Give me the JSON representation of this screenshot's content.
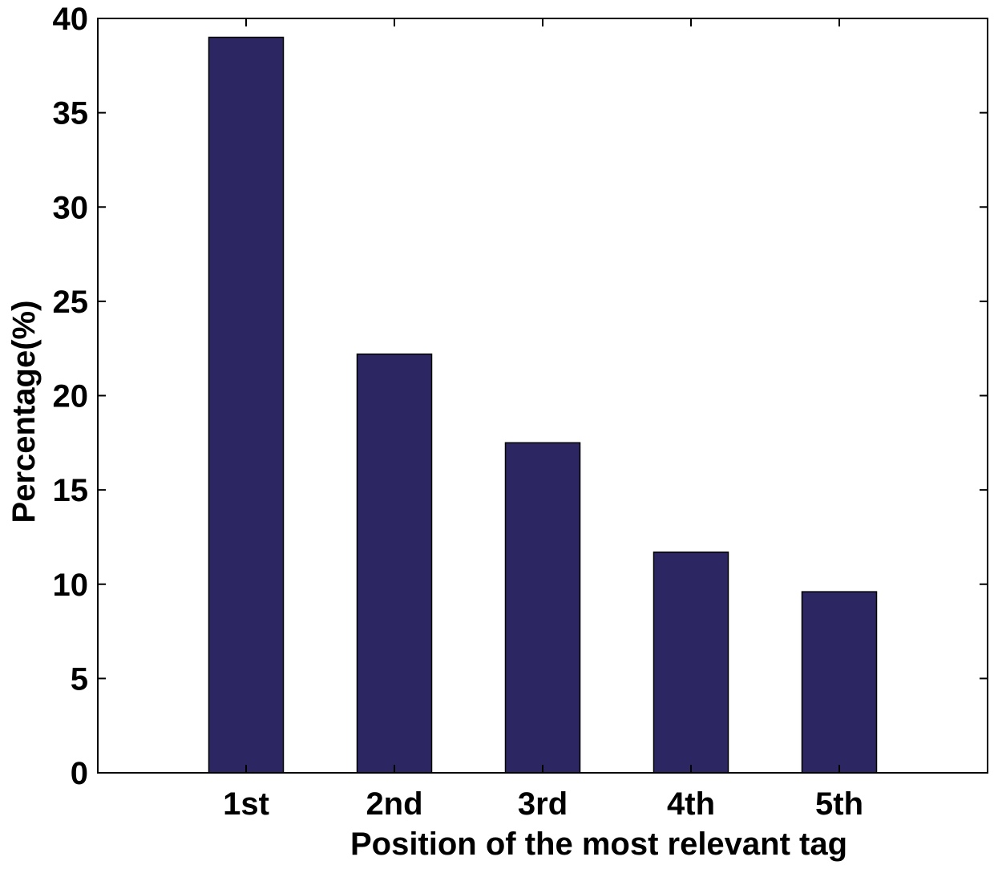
{
  "chart_data": {
    "type": "bar",
    "categories": [
      "1st",
      "2nd",
      "3rd",
      "4th",
      "5th"
    ],
    "values": [
      39.0,
      22.2,
      17.5,
      11.7,
      9.6
    ],
    "title": "",
    "xlabel": "Position of the most relevant tag",
    "ylabel": "Percentage(%)",
    "ylim": [
      0,
      40
    ],
    "yticks": [
      0,
      5,
      10,
      15,
      20,
      25,
      30,
      35,
      40
    ],
    "grid": false,
    "bar_color": "#2c2762",
    "bar_edge_color": "#000000"
  }
}
